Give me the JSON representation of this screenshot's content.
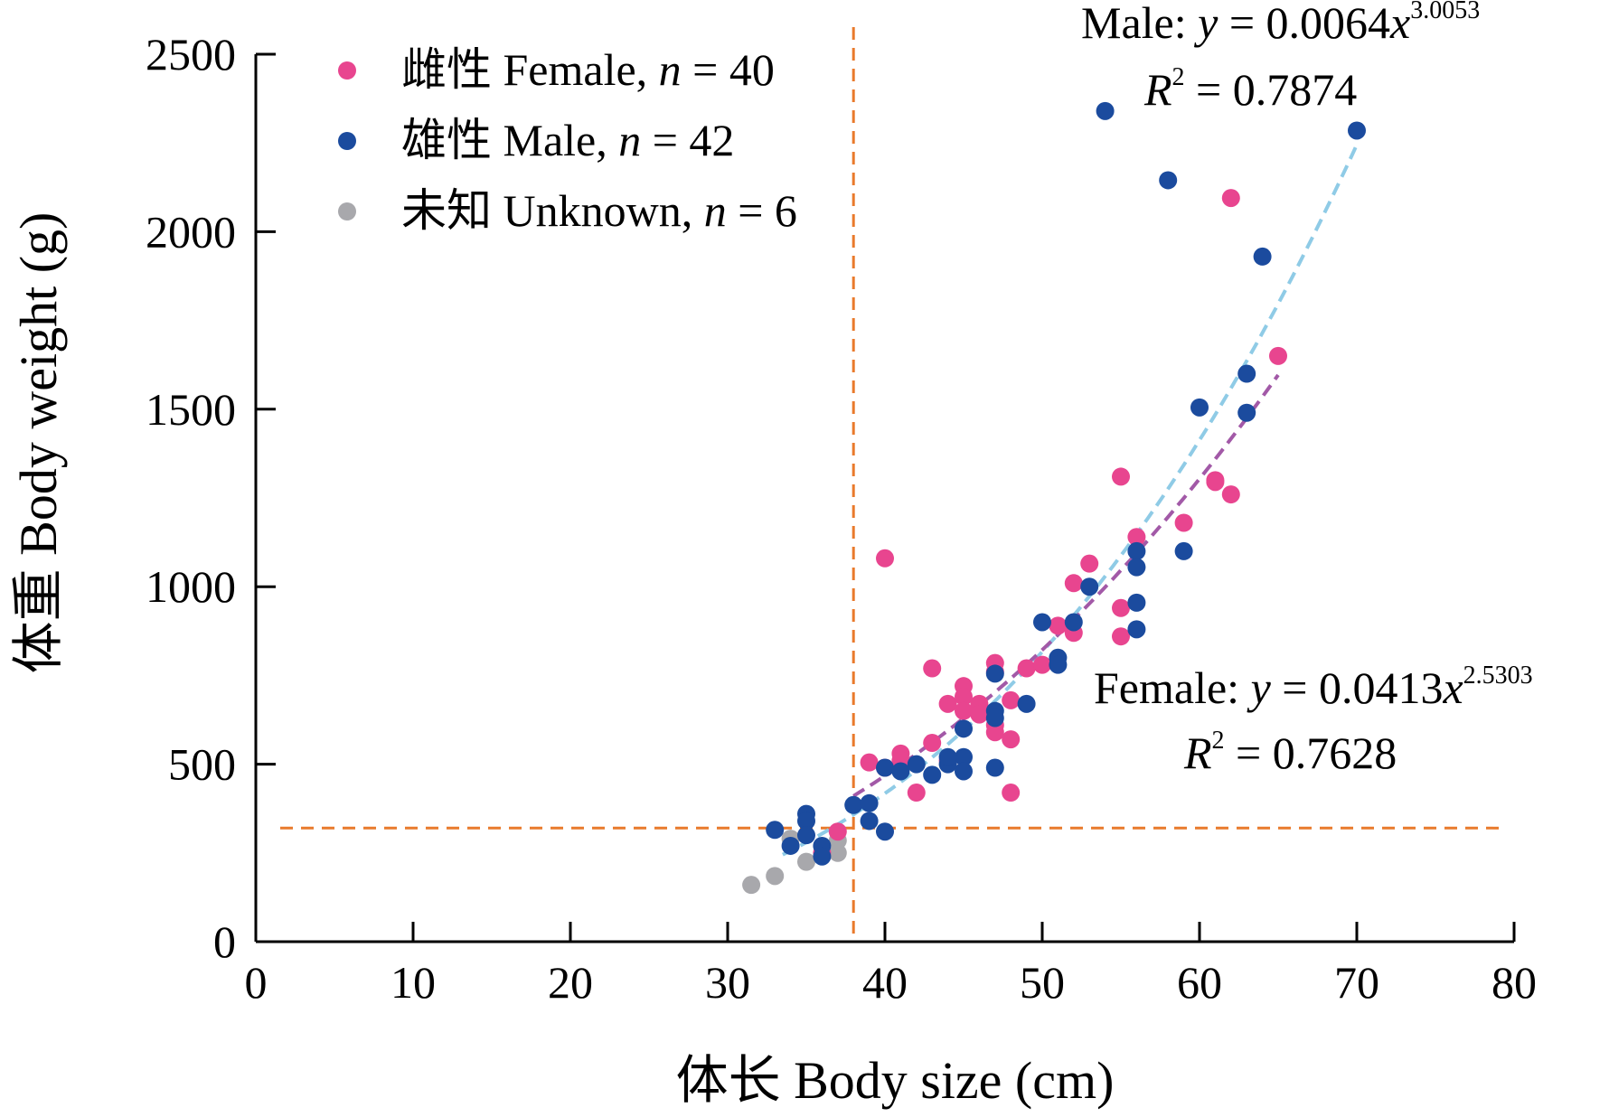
{
  "chart_data": {
    "type": "scatter",
    "xlabel": "体长 Body size (cm)",
    "ylabel": "体重 Body weight (g)",
    "xlim": [
      0,
      80
    ],
    "ylim": [
      0,
      2500
    ],
    "x_ticks": [
      "0",
      "10",
      "20",
      "30",
      "40",
      "50",
      "60",
      "70",
      "80"
    ],
    "y_ticks": [
      "0",
      "500",
      "1000",
      "1500",
      "2000",
      "2500"
    ],
    "grid": false,
    "legend_position": "top-left",
    "series": [
      {
        "name": "雌性 Female, n = 40",
        "legend_prefix": "雌性 Female, ",
        "legend_n": "n",
        "legend_suffix": " = 40",
        "color": "#E8458F",
        "points": [
          [
            39,
            505
          ],
          [
            40,
            1080
          ],
          [
            40,
            490
          ],
          [
            41,
            530
          ],
          [
            41,
            510
          ],
          [
            42,
            420
          ],
          [
            43,
            770
          ],
          [
            43,
            560
          ],
          [
            44,
            670
          ],
          [
            44,
            510
          ],
          [
            45,
            720
          ],
          [
            45,
            690
          ],
          [
            45,
            650
          ],
          [
            46,
            670
          ],
          [
            47,
            785
          ],
          [
            47,
            760
          ],
          [
            47,
            610
          ],
          [
            47,
            590
          ],
          [
            48,
            680
          ],
          [
            48,
            570
          ],
          [
            48,
            420
          ],
          [
            49,
            770
          ],
          [
            51,
            890
          ],
          [
            52,
            1010
          ],
          [
            52,
            870
          ],
          [
            53,
            1065
          ],
          [
            55,
            1310
          ],
          [
            55,
            940
          ],
          [
            55,
            860
          ],
          [
            56,
            1140
          ],
          [
            59,
            1180
          ],
          [
            61,
            1300
          ],
          [
            61,
            1295
          ],
          [
            62,
            1260
          ],
          [
            62,
            2095
          ],
          [
            65,
            1650
          ],
          [
            36,
            250
          ],
          [
            37,
            310
          ],
          [
            46,
            640
          ],
          [
            50,
            780
          ]
        ]
      },
      {
        "name": "雄性 Male, n = 42",
        "legend_prefix": "雄性 Male, ",
        "legend_n": "n",
        "legend_suffix": " = 42",
        "color": "#1B4B9E",
        "points": [
          [
            33,
            315
          ],
          [
            35,
            360
          ],
          [
            35,
            340
          ],
          [
            35,
            300
          ],
          [
            36,
            270
          ],
          [
            36,
            240
          ],
          [
            38,
            385
          ],
          [
            39,
            390
          ],
          [
            39,
            340
          ],
          [
            40,
            490
          ],
          [
            40,
            310
          ],
          [
            42,
            500
          ],
          [
            43,
            470
          ],
          [
            44,
            500
          ],
          [
            45,
            520
          ],
          [
            45,
            480
          ],
          [
            45,
            600
          ],
          [
            47,
            755
          ],
          [
            47,
            650
          ],
          [
            47,
            630
          ],
          [
            47,
            490
          ],
          [
            49,
            670
          ],
          [
            50,
            900
          ],
          [
            51,
            800
          ],
          [
            51,
            780
          ],
          [
            52,
            900
          ],
          [
            53,
            1000
          ],
          [
            54,
            2340
          ],
          [
            56,
            1100
          ],
          [
            56,
            1055
          ],
          [
            56,
            955
          ],
          [
            56,
            880
          ],
          [
            58,
            2145
          ],
          [
            59,
            1100
          ],
          [
            60,
            1505
          ],
          [
            63,
            1600
          ],
          [
            63,
            1490
          ],
          [
            64,
            1930
          ],
          [
            70,
            2285
          ],
          [
            34,
            270
          ],
          [
            41,
            480
          ],
          [
            44,
            520
          ]
        ]
      },
      {
        "name": "未知 Unknown, n = 6",
        "legend_prefix": "未知 Unknown, ",
        "legend_n": "n",
        "legend_suffix": " = 6",
        "color": "#A8A8AC",
        "points": [
          [
            31.5,
            160
          ],
          [
            33,
            185
          ],
          [
            34,
            290
          ],
          [
            35,
            225
          ],
          [
            37,
            285
          ],
          [
            37,
            250
          ]
        ]
      }
    ],
    "fit_lines": [
      {
        "name": "Male fit",
        "a": 0.0064,
        "b": 3.0053,
        "x_range": [
          33.5,
          70
        ],
        "color": "#8FCBE6"
      },
      {
        "name": "Female fit",
        "a": 0.0413,
        "b": 2.5303,
        "x_range": [
          38,
          65
        ],
        "color": "#A259A7"
      }
    ],
    "reference_lines": {
      "color": "#E97A2C",
      "vertical_x": 38,
      "horizontal_y": 320
    },
    "annotations": {
      "male": {
        "label": "Male: ",
        "y_var": "y",
        "eq_mid": " = 0.0064",
        "x_var": "x",
        "exponent": "3.0053",
        "r_var": "R",
        "r_exp": "2",
        "r_val": " = 0.7874"
      },
      "female": {
        "label": "Female: ",
        "y_var": "y",
        "eq_mid": " = 0.0413",
        "x_var": "x",
        "exponent": "2.5303",
        "r_var": "R",
        "r_exp": "2",
        "r_val": " = 0.7628"
      }
    }
  }
}
